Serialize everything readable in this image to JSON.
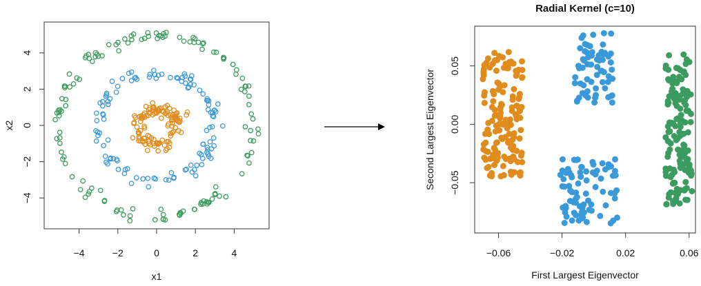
{
  "colors": {
    "orange": "#E08C1C",
    "blue": "#3A9AD9",
    "green": "#3C9B5E",
    "axis": "#333333"
  },
  "chart_data": [
    {
      "type": "scatter",
      "title": "",
      "xlabel": "x1",
      "ylabel": "x2",
      "xlim": [
        -5.8,
        5.8
      ],
      "ylim": [
        -5.7,
        5.7
      ],
      "xticks": [
        -4,
        -2,
        0,
        2,
        4
      ],
      "yticks": [
        -4,
        -2,
        0,
        2,
        4
      ],
      "marker": "open-circle",
      "series": [
        {
          "color": "#E08C1C",
          "shape": "ring",
          "radius_mean": 1.0,
          "radius_jitter": 0.35,
          "n": 120,
          "seed": 11
        },
        {
          "color": "#3A9AD9",
          "shape": "ring",
          "radius_mean": 3.0,
          "radius_jitter": 0.3,
          "n": 120,
          "seed": 23
        },
        {
          "color": "#3C9B5E",
          "shape": "ring",
          "radius_mean": 5.0,
          "radius_jitter": 0.3,
          "n": 140,
          "seed": 37
        }
      ]
    },
    {
      "type": "scatter",
      "title": "Radial Kernel (c=10)",
      "xlabel": "First Largest Eigenvector",
      "ylabel": "Second Largest Eigenvector",
      "xlim": [
        -0.075,
        0.064
      ],
      "ylim": [
        -0.093,
        0.084
      ],
      "xticks": [
        -0.06,
        -0.02,
        0.02,
        0.06
      ],
      "xtick_labels": [
        "−0.06",
        "−0.02",
        "0.02",
        "0.06"
      ],
      "yticks": [
        -0.05,
        0.0,
        0.05
      ],
      "ytick_labels": [
        "−0.05",
        "0.00",
        "0.05"
      ],
      "marker": "filled-circle",
      "series": [
        {
          "color": "#E08C1C",
          "shape": "cluster",
          "x_range": [
            -0.07,
            -0.045
          ],
          "y_range": [
            -0.045,
            0.062
          ],
          "n": 150,
          "seed": 51
        },
        {
          "color": "#3A9AD9",
          "shape": "cluster",
          "x_range": [
            -0.022,
            0.015
          ],
          "y_range": [
            -0.085,
            -0.03
          ],
          "n": 80,
          "seed": 63
        },
        {
          "color": "#3A9AD9",
          "shape": "cluster",
          "x_range": [
            -0.012,
            0.012
          ],
          "y_range": [
            0.018,
            0.08
          ],
          "n": 65,
          "seed": 71
        },
        {
          "color": "#3C9B5E",
          "shape": "cluster",
          "x_range": [
            0.045,
            0.062
          ],
          "y_range": [
            -0.07,
            0.06
          ],
          "n": 140,
          "seed": 83
        }
      ]
    }
  ]
}
